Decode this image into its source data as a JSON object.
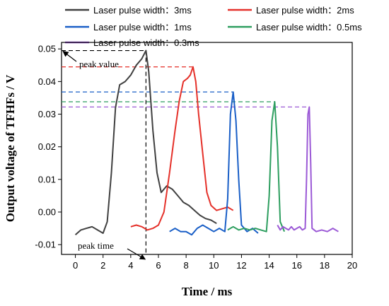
{
  "chart_data": {
    "type": "line",
    "title": "",
    "xlabel": "Time / ms",
    "ylabel": "Output  voltage  of  TFHFs / V",
    "xlim": [
      -1,
      20
    ],
    "ylim": [
      -0.013,
      0.052
    ],
    "xticks": [
      0,
      2,
      4,
      6,
      8,
      10,
      12,
      14,
      16,
      18,
      20
    ],
    "yticks": [
      -0.01,
      0.0,
      0.01,
      0.02,
      0.03,
      0.04,
      0.05
    ],
    "ytick_labels": [
      "-0.01",
      "0.00",
      "0.01",
      "0.02",
      "0.03",
      "0.04",
      "0.05"
    ],
    "legend_position": "top",
    "series": [
      {
        "name": "Laser pulse width：3ms",
        "color": "#404040",
        "peak": 0.0495,
        "points": [
          [
            0,
            -0.007
          ],
          [
            0.4,
            -0.0055
          ],
          [
            0.8,
            -0.005
          ],
          [
            1.2,
            -0.0045
          ],
          [
            1.6,
            -0.0055
          ],
          [
            2.0,
            -0.0065
          ],
          [
            2.3,
            -0.003
          ],
          [
            2.6,
            0.012
          ],
          [
            2.9,
            0.032
          ],
          [
            3.2,
            0.039
          ],
          [
            3.6,
            0.04
          ],
          [
            4.0,
            0.042
          ],
          [
            4.4,
            0.045
          ],
          [
            4.8,
            0.047
          ],
          [
            5.1,
            0.0495
          ],
          [
            5.3,
            0.043
          ],
          [
            5.6,
            0.025
          ],
          [
            5.9,
            0.012
          ],
          [
            6.2,
            0.006
          ],
          [
            6.6,
            0.008
          ],
          [
            7.0,
            0.007
          ],
          [
            7.4,
            0.005
          ],
          [
            7.8,
            0.003
          ],
          [
            8.2,
            0.002
          ],
          [
            8.6,
            0.0005
          ],
          [
            9.0,
            -0.001
          ],
          [
            9.4,
            -0.002
          ],
          [
            9.8,
            -0.0025
          ],
          [
            10.2,
            -0.0035
          ]
        ]
      },
      {
        "name": "Laser pulse width：2ms",
        "color": "#e5312a",
        "peak": 0.0445,
        "points": [
          [
            4.0,
            -0.0045
          ],
          [
            4.4,
            -0.004
          ],
          [
            4.8,
            -0.0045
          ],
          [
            5.2,
            -0.0055
          ],
          [
            5.6,
            -0.005
          ],
          [
            6.0,
            -0.004
          ],
          [
            6.4,
            0.0
          ],
          [
            6.8,
            0.012
          ],
          [
            7.2,
            0.025
          ],
          [
            7.5,
            0.034
          ],
          [
            7.8,
            0.04
          ],
          [
            8.1,
            0.041
          ],
          [
            8.3,
            0.042
          ],
          [
            8.5,
            0.0445
          ],
          [
            8.7,
            0.04
          ],
          [
            8.9,
            0.03
          ],
          [
            9.2,
            0.018
          ],
          [
            9.5,
            0.006
          ],
          [
            9.8,
            0.002
          ],
          [
            10.2,
            0.0005
          ],
          [
            10.6,
            0.001
          ],
          [
            11.0,
            0.0015
          ],
          [
            11.4,
            0.0005
          ]
        ]
      },
      {
        "name": "Laser pulse width：1ms",
        "color": "#1a5fc7",
        "peak": 0.0368,
        "points": [
          [
            6.8,
            -0.006
          ],
          [
            7.2,
            -0.005
          ],
          [
            7.6,
            -0.006
          ],
          [
            8.0,
            -0.006
          ],
          [
            8.4,
            -0.007
          ],
          [
            8.8,
            -0.005
          ],
          [
            9.2,
            -0.004
          ],
          [
            9.6,
            -0.005
          ],
          [
            10.0,
            -0.006
          ],
          [
            10.4,
            -0.005
          ],
          [
            10.8,
            -0.006
          ],
          [
            11.0,
            0.004
          ],
          [
            11.2,
            0.03
          ],
          [
            11.4,
            0.0368
          ],
          [
            11.6,
            0.028
          ],
          [
            11.8,
            0.01
          ],
          [
            12.0,
            -0.004
          ],
          [
            12.4,
            -0.006
          ],
          [
            12.8,
            -0.005
          ],
          [
            13.2,
            -0.0065
          ]
        ]
      },
      {
        "name": "Laser pulse width：0.5ms",
        "color": "#2d9e5f",
        "peak": 0.0338,
        "points": [
          [
            11.0,
            -0.0055
          ],
          [
            11.4,
            -0.0045
          ],
          [
            11.8,
            -0.0055
          ],
          [
            12.2,
            -0.005
          ],
          [
            12.6,
            -0.0055
          ],
          [
            13.0,
            -0.005
          ],
          [
            13.4,
            -0.0055
          ],
          [
            13.8,
            -0.006
          ],
          [
            14.0,
            0.005
          ],
          [
            14.2,
            0.028
          ],
          [
            14.4,
            0.0338
          ],
          [
            14.6,
            0.02
          ],
          [
            14.8,
            -0.003
          ],
          [
            15.1,
            -0.006
          ]
        ]
      },
      {
        "name": "Laser pulse width：0.3ms",
        "color": "#9b59d6",
        "peak": 0.0322,
        "points": [
          [
            14.6,
            -0.004
          ],
          [
            14.8,
            -0.0055
          ],
          [
            15.0,
            -0.0045
          ],
          [
            15.2,
            -0.005
          ],
          [
            15.4,
            -0.0055
          ],
          [
            15.6,
            -0.0045
          ],
          [
            15.8,
            -0.0055
          ],
          [
            16.0,
            -0.005
          ],
          [
            16.2,
            -0.0045
          ],
          [
            16.4,
            -0.0055
          ],
          [
            16.6,
            -0.005
          ],
          [
            16.7,
            0.01
          ],
          [
            16.8,
            0.03
          ],
          [
            16.9,
            0.0322
          ],
          [
            17.0,
            0.015
          ],
          [
            17.1,
            -0.005
          ],
          [
            17.4,
            -0.006
          ],
          [
            17.8,
            -0.0055
          ],
          [
            18.2,
            -0.006
          ],
          [
            18.6,
            -0.005
          ],
          [
            19.0,
            -0.006
          ]
        ]
      }
    ],
    "annotations": {
      "peak_value": {
        "text": "peak value",
        "y": 0.0495
      },
      "peak_time": {
        "text": "peak time",
        "x": 5.1
      }
    }
  }
}
